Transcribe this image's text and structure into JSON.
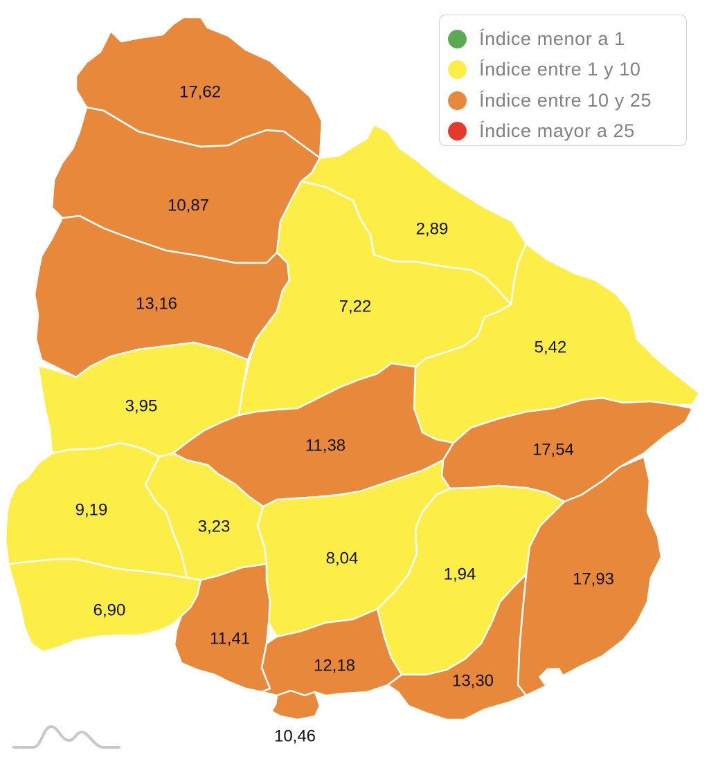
{
  "colors": {
    "green": "#5aaa52",
    "yellow": "#fcee47",
    "orange": "#e8883a",
    "red": "#e33a2c",
    "border": "#ffffff",
    "label": "#111111",
    "logo": "#c8c8c8"
  },
  "legend": {
    "items": [
      {
        "label": "Índice menor a 1",
        "color": "#5aaa52"
      },
      {
        "label": "Índice entre 1 y 10",
        "color": "#fcee47"
      },
      {
        "label": "Índice entre 10 y 25",
        "color": "#e8883a"
      },
      {
        "label": "Índice mayor a 25",
        "color": "#e33a2c"
      }
    ]
  },
  "regions": [
    {
      "id": "r1",
      "value": "17,62",
      "category": "orange"
    },
    {
      "id": "r2",
      "value": "10,87",
      "category": "orange"
    },
    {
      "id": "r3",
      "value": "13,16",
      "category": "orange"
    },
    {
      "id": "r4",
      "value": "2,89",
      "category": "yellow"
    },
    {
      "id": "r5",
      "value": "7,22",
      "category": "yellow"
    },
    {
      "id": "r6",
      "value": "5,42",
      "category": "yellow"
    },
    {
      "id": "r7",
      "value": "3,95",
      "category": "yellow"
    },
    {
      "id": "r8",
      "value": "11,38",
      "category": "orange"
    },
    {
      "id": "r9",
      "value": "17,54",
      "category": "orange"
    },
    {
      "id": "r10",
      "value": "9,19",
      "category": "yellow"
    },
    {
      "id": "r11",
      "value": "3,23",
      "category": "yellow"
    },
    {
      "id": "r12",
      "value": "8,04",
      "category": "yellow"
    },
    {
      "id": "r13",
      "value": "1,94",
      "category": "yellow"
    },
    {
      "id": "r14",
      "value": "17,93",
      "category": "orange"
    },
    {
      "id": "r15",
      "value": "6,90",
      "category": "yellow"
    },
    {
      "id": "r16",
      "value": "11,41",
      "category": "orange"
    },
    {
      "id": "r17",
      "value": "12,18",
      "category": "orange"
    },
    {
      "id": "r18",
      "value": "13,30",
      "category": "orange"
    },
    {
      "id": "r19",
      "value": "10,46",
      "category": "orange"
    }
  ]
}
